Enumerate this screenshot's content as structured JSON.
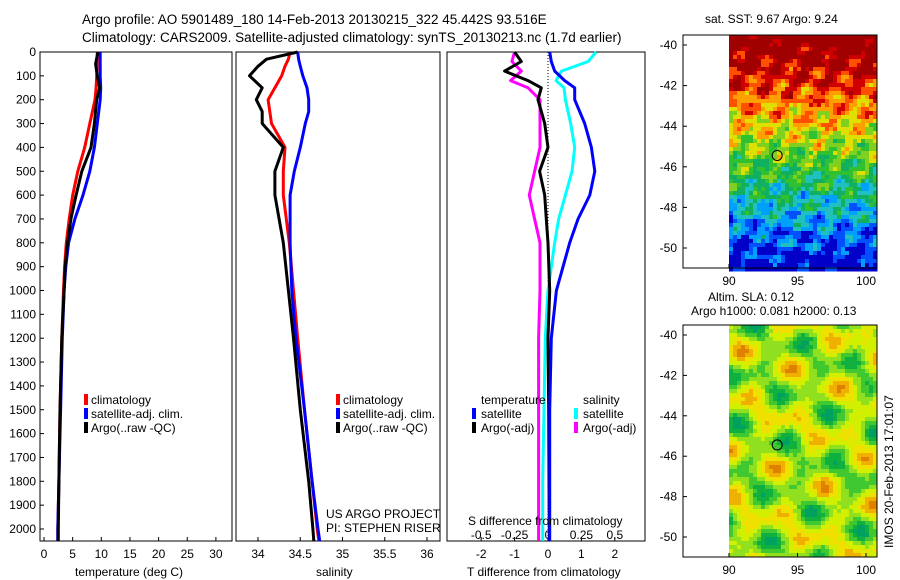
{
  "header": {
    "line1": "Argo profile: AO 5901489_180 14-Feb-2013 20130215_322 45.442S 93.516E",
    "line2": "Climatology: CARS2009. Satellite-adjusted climatology: synTS_20130213.nc (1.7d earlier)"
  },
  "colors": {
    "climatology": "#ff0000",
    "satellite": "#0000ff",
    "argo": "#000000",
    "sat_s": "#00ffff",
    "argo_s": "#ff00ff"
  },
  "chart_data": [
    {
      "type": "line",
      "name": "temperature",
      "xlabel": "temperature (deg C)",
      "xlim": [
        -0.5,
        32
      ],
      "ylim": [
        0,
        2050
      ],
      "xticks": [
        "0",
        "5",
        "10",
        "15",
        "20",
        "25",
        "30"
      ],
      "yticks": [
        "0",
        "100",
        "200",
        "300",
        "400",
        "500",
        "600",
        "700",
        "800",
        "900",
        "1000",
        "1100",
        "1200",
        "1300",
        "1400",
        "1500",
        "1600",
        "1700",
        "1800",
        "1900",
        "2000"
      ],
      "legend": [
        "climatology",
        "satellite-adj. clim.",
        "Argo(..raw -QC)"
      ],
      "depth": [
        0,
        50,
        100,
        150,
        200,
        300,
        400,
        500,
        600,
        700,
        800,
        900,
        1000,
        1200,
        1500,
        1800,
        2000,
        2050
      ],
      "series": [
        {
          "name": "climatology",
          "values": [
            9.3,
            9.3,
            9.2,
            9.1,
            8.9,
            8.0,
            7.1,
            5.9,
            5.0,
            4.4,
            3.9,
            3.6,
            3.4,
            3.1,
            2.8,
            2.6,
            2.4,
            2.4
          ]
        },
        {
          "name": "satellite-adj. clim.",
          "values": [
            9.8,
            9.8,
            9.8,
            9.9,
            9.8,
            9.3,
            8.8,
            8.0,
            6.8,
            5.4,
            4.3,
            3.8,
            3.5,
            3.2,
            2.9,
            2.6,
            2.4,
            2.4
          ]
        },
        {
          "name": "Argo(..raw -QC)",
          "values": [
            9.4,
            9.0,
            9.3,
            9.7,
            9.2,
            8.8,
            8.2,
            6.6,
            5.6,
            4.7,
            4.1,
            3.7,
            3.5,
            3.1,
            2.8,
            2.6,
            2.5,
            2.5
          ]
        }
      ]
    },
    {
      "type": "line",
      "name": "salinity",
      "xlabel": "salinity",
      "xlim": [
        33.7,
        36.1
      ],
      "xticks": [
        "34",
        "34.5",
        "35",
        "35.5",
        "36"
      ],
      "legend": [
        "climatology",
        "satellite-adj. clim.",
        "Argo(..raw -QC)"
      ],
      "annotation": [
        "US ARGO PROJECT",
        "PI: STEPHEN RISER"
      ],
      "depth": [
        0,
        30,
        60,
        100,
        150,
        200,
        250,
        300,
        400,
        500,
        600,
        800,
        1000,
        1200,
        1500,
        1800,
        2000,
        2050
      ],
      "series": [
        {
          "name": "climatology",
          "values": [
            34.38,
            34.36,
            34.32,
            34.28,
            34.2,
            34.12,
            34.14,
            34.16,
            34.32,
            34.3,
            34.3,
            34.37,
            34.42,
            34.47,
            34.55,
            34.64,
            34.7,
            34.72
          ]
        },
        {
          "name": "satellite-adj. clim.",
          "values": [
            34.47,
            34.48,
            34.5,
            34.53,
            34.58,
            34.6,
            34.6,
            34.56,
            34.5,
            34.43,
            34.38,
            34.38,
            34.4,
            34.45,
            34.55,
            34.64,
            34.71,
            34.73
          ]
        },
        {
          "name": "Argo(..raw -QC)",
          "values": [
            34.47,
            34.1,
            34.0,
            33.9,
            34.05,
            33.98,
            34.05,
            34.05,
            34.3,
            34.2,
            34.2,
            34.3,
            34.36,
            34.42,
            34.5,
            34.6,
            34.65,
            34.66
          ]
        }
      ]
    },
    {
      "type": "line",
      "name": "difference from climatology",
      "xlabel": "T difference from climatology",
      "x2label": "S difference from climatology",
      "xlim": [
        -3,
        3
      ],
      "xticks": [
        "-2",
        "-1",
        "0",
        "1",
        "2"
      ],
      "x2ticks": [
        "-0.5",
        "-0.25",
        "0",
        "0.25",
        "0.5"
      ],
      "legend_titles": [
        "temperature",
        "salinity"
      ],
      "legend": [
        "satellite",
        "Argo(-adj)",
        "satellite",
        "Argo(-adj)"
      ],
      "depth": [
        0,
        40,
        80,
        120,
        150,
        200,
        300,
        400,
        500,
        600,
        700,
        800,
        1000,
        1200,
        1500,
        1800,
        2000,
        2050
      ],
      "series": [
        {
          "name": "temperature satellite",
          "values": [
            0.05,
            0.1,
            0.2,
            0.5,
            0.8,
            0.8,
            1.1,
            1.3,
            1.4,
            1.25,
            0.9,
            0.65,
            0.25,
            0.1,
            0.05,
            0.05,
            0.05,
            0.05
          ]
        },
        {
          "name": "temperature Argo(-adj)",
          "values": [
            -1.0,
            -0.8,
            -1.3,
            -0.6,
            -0.2,
            -0.3,
            -0.1,
            0.0,
            -0.25,
            -0.1,
            -0.05,
            0.0,
            0.05,
            0.0,
            0.02,
            0.03,
            0.04,
            0.04
          ]
        },
        {
          "name": "salinity satellite",
          "values": [
            0.36,
            0.3,
            0.1,
            0.06,
            0.12,
            0.13,
            0.17,
            0.2,
            0.18,
            0.13,
            0.08,
            0.05,
            0.0,
            -0.02,
            -0.03,
            -0.04,
            -0.04,
            -0.04
          ]
        },
        {
          "name": "salinity Argo(-adj)",
          "values": [
            -0.25,
            -0.27,
            -0.2,
            -0.28,
            -0.15,
            -0.06,
            -0.06,
            -0.06,
            -0.1,
            -0.14,
            -0.1,
            -0.06,
            -0.06,
            -0.07,
            -0.07,
            -0.07,
            -0.07,
            -0.07
          ]
        }
      ]
    },
    {
      "type": "heatmap",
      "name": "SST map",
      "title": "sat. SST: 9.67 Argo: 9.24",
      "xlim": [
        86.7,
        100.7
      ],
      "ylim": [
        -51.3,
        -39.5
      ],
      "xticks": [
        "90",
        "95",
        "100"
      ],
      "yticks": [
        "-40",
        "-42",
        "-44",
        "-46",
        "-48",
        "-50"
      ],
      "marker": {
        "lon": 93.516,
        "lat": -45.442
      }
    },
    {
      "type": "heatmap",
      "name": "SLA map",
      "title": [
        "Altim. SLA: 0.12",
        "Argo h1000: 0.081 h2000: 0.13"
      ],
      "xlim": [
        86.7,
        100.7
      ],
      "ylim": [
        -51.3,
        -39.5
      ],
      "xticks": [
        "90",
        "95",
        "100"
      ],
      "yticks": [
        "-40",
        "-42",
        "-44",
        "-46",
        "-48",
        "-50"
      ],
      "marker": {
        "lon": 93.516,
        "lat": -45.442
      }
    }
  ],
  "footer": {
    "stamp": "IMOS 20-Feb-2013 17:01:07"
  }
}
